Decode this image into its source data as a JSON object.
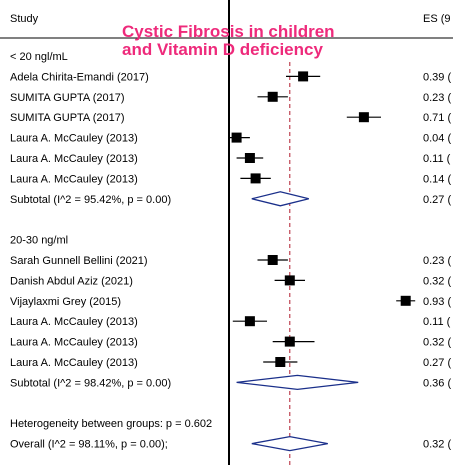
{
  "header": {
    "study": "Study",
    "es": "ES (9"
  },
  "title": {
    "line1": "Cystic Fibrosis in children",
    "line2": "and Vitamin D deficiency",
    "color": "#ee2a7b"
  },
  "groups": [
    {
      "label": "< 20 ngl/mL"
    },
    {
      "label": "20-30 ng/ml"
    }
  ],
  "heterogeneity_text": "Heterogeneity between groups: p = 0.602",
  "chart_data": {
    "type": "forest",
    "title": "Cystic Fibrosis in children and Vitamin D deficiency",
    "reference_line": 0.0,
    "overall_line": 0.32,
    "rows": [
      {
        "kind": "group",
        "label": "< 20 ngl/mL"
      },
      {
        "kind": "study",
        "label": "Adela Chirita-Emandi (2017)",
        "es": 0.39,
        "ci": [
          0.3,
          0.48
        ],
        "es_text": "0.39 ("
      },
      {
        "kind": "study",
        "label": "SUMITA GUPTA (2017)",
        "es": 0.23,
        "ci": [
          0.15,
          0.31
        ],
        "es_text": "0.23 ("
      },
      {
        "kind": "study",
        "label": "SUMITA GUPTA (2017)",
        "es": 0.71,
        "ci": [
          0.62,
          0.8
        ],
        "es_text": "0.71 ("
      },
      {
        "kind": "study",
        "label": "Laura A. McCauley (2013)",
        "es": 0.04,
        "ci": [
          0.0,
          0.11
        ],
        "es_text": "0.04 ("
      },
      {
        "kind": "study",
        "label": "Laura A. McCauley (2013)",
        "es": 0.11,
        "ci": [
          0.04,
          0.18
        ],
        "es_text": "0.11 ("
      },
      {
        "kind": "study",
        "label": "Laura A. McCauley (2013)",
        "es": 0.14,
        "ci": [
          0.06,
          0.22
        ],
        "es_text": "0.14 ("
      },
      {
        "kind": "subtotal",
        "label": "Subtotal  (I^2 = 95.42%, p = 0.00)",
        "es": 0.27,
        "ci": [
          0.12,
          0.42
        ],
        "es_text": "0.27 ("
      },
      {
        "kind": "blank"
      },
      {
        "kind": "group",
        "label": "20-30 ng/ml"
      },
      {
        "kind": "study",
        "label": "Sarah Gunnell Bellini (2021)",
        "es": 0.23,
        "ci": [
          0.15,
          0.31
        ],
        "es_text": "0.23 ("
      },
      {
        "kind": "study",
        "label": "Danish Abdul Aziz (2021)",
        "es": 0.32,
        "ci": [
          0.24,
          0.4
        ],
        "es_text": "0.32 ("
      },
      {
        "kind": "study",
        "label": "Vijaylaxmi Grey (2015)",
        "es": 0.93,
        "ci": [
          0.88,
          0.98
        ],
        "es_text": "0.93 ("
      },
      {
        "kind": "study",
        "label": "Laura A. McCauley (2013)",
        "es": 0.11,
        "ci": [
          0.02,
          0.2
        ],
        "es_text": "0.11 ("
      },
      {
        "kind": "study",
        "label": "Laura A. McCauley (2013)",
        "es": 0.32,
        "ci": [
          0.23,
          0.45
        ],
        "es_text": "0.32 ("
      },
      {
        "kind": "study",
        "label": "Laura A. McCauley (2013)",
        "es": 0.27,
        "ci": [
          0.18,
          0.36
        ],
        "es_text": "0.27 ("
      },
      {
        "kind": "subtotal",
        "label": "Subtotal  (I^2 = 98.42%, p = 0.00)",
        "es": 0.36,
        "ci": [
          0.04,
          0.68
        ],
        "es_text": "0.36 ("
      },
      {
        "kind": "blank"
      },
      {
        "kind": "heterogeneity"
      },
      {
        "kind": "overall",
        "label": "Overall  (I^2 = 98.11%, p = 0.00);",
        "es": 0.32,
        "ci": [
          0.12,
          0.52
        ],
        "es_text": "0.32 ("
      }
    ],
    "colors": {
      "marker": "#000000",
      "diamond": "#1a2f8a",
      "overall_line": "#b01c2e",
      "title": "#ee2a7b"
    }
  }
}
